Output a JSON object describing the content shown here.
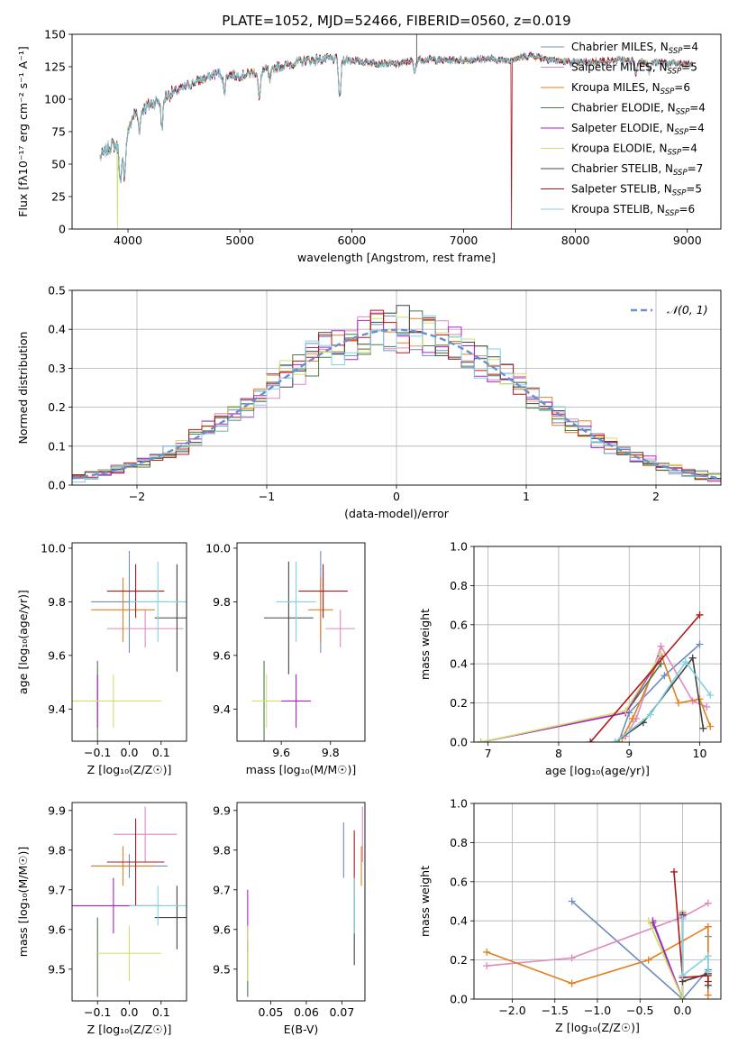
{
  "figure_title": "PLATE=1052, MJD=52466, FIBERID=0560, z=0.019",
  "colors": {
    "Chabrier MILES": "#6c8ebf",
    "Salpeter MILES": "#e08ac0",
    "Kroupa MILES": "#e08020",
    "Chabrier ELODIE": "#4a7a48",
    "Salpeter ELODIE": "#b020c8",
    "Kroupa ELODIE": "#d0e070",
    "Chabrier STELIB": "#444444",
    "Salpeter STELIB": "#b01818",
    "Kroupa STELIB": "#7fd3e0",
    "normal": "#6a8fd0"
  },
  "chart_data": [
    {
      "id": "spectrum",
      "type": "line",
      "title": "PLATE=1052, MJD=52466, FIBERID=0560, z=0.019",
      "xlabel": "wavelength [Angstrom, rest frame]",
      "ylabel": "Flux [fλ10⁻¹⁷ erg cm⁻² s⁻¹ A⁻¹]",
      "xlim": [
        3500,
        9300
      ],
      "ylim": [
        0,
        150
      ],
      "xticks": [
        4000,
        5000,
        6000,
        7000,
        8000,
        9000
      ],
      "yticks": [
        0,
        25,
        50,
        75,
        100,
        125,
        150
      ],
      "legend_position": "right",
      "legend": [
        {
          "name": "Chabrier MILES",
          "n": "4"
        },
        {
          "name": "Salpeter MILES",
          "n": "5"
        },
        {
          "name": "Kroupa MILES",
          "n": "6"
        },
        {
          "name": "Chabrier ELODIE",
          "n": "4"
        },
        {
          "name": "Salpeter ELODIE",
          "n": "4"
        },
        {
          "name": "Kroupa ELODIE",
          "n": "4"
        },
        {
          "name": "Chabrier STELIB",
          "n": "7"
        },
        {
          "name": "Salpeter STELIB",
          "n": "5"
        },
        {
          "name": "Kroupa STELIB",
          "n": "6"
        }
      ],
      "continuum": {
        "x": [
          3750,
          3850,
          3950,
          4050,
          4200,
          4400,
          4600,
          4800,
          5000,
          5200,
          5400,
          5600,
          5800,
          6000,
          6200,
          6400,
          6600,
          6800,
          7000,
          7200,
          7400,
          7600,
          7800,
          8000,
          8200,
          8400,
          8600,
          8800,
          9000,
          9200
        ],
        "y": [
          55,
          65,
          62,
          88,
          96,
          105,
          113,
          120,
          118,
          122,
          126,
          130,
          131,
          130,
          128,
          127,
          131,
          130,
          130,
          131,
          130,
          134,
          130,
          128,
          129,
          130,
          129,
          128,
          127,
          127
        ]
      },
      "features": [
        {
          "x": 3934,
          "depth": 28
        },
        {
          "x": 3969,
          "depth": 25
        },
        {
          "x": 4102,
          "depth": 14
        },
        {
          "x": 4304,
          "depth": 22
        },
        {
          "x": 4861,
          "depth": 14
        },
        {
          "x": 5175,
          "depth": 22
        },
        {
          "x": 5270,
          "depth": 10
        },
        {
          "x": 5893,
          "depth": 30
        },
        {
          "x": 6563,
          "depth": 10
        },
        {
          "x": 8542,
          "depth": 10
        },
        {
          "x": 8662,
          "depth": 8
        }
      ],
      "dropouts": [
        {
          "x": 3905,
          "color": "Kroupa ELODIE"
        },
        {
          "x": 6790,
          "color": "Kroupa ELODIE"
        },
        {
          "x": 7430,
          "color": "Salpeter STELIB"
        }
      ],
      "model_end": 9050,
      "spike": {
        "x": 6580,
        "y": 150
      }
    },
    {
      "id": "residuals",
      "type": "histogram",
      "xlabel": "(data-model)/error",
      "ylabel": "Normed distribution",
      "xlim": [
        -2.5,
        2.5
      ],
      "ylim": [
        0,
        0.5
      ],
      "xticks": [
        -2,
        -1,
        0,
        1,
        2
      ],
      "xtick_labels": [
        "−2",
        "−1",
        "0",
        "1",
        "2"
      ],
      "yticks": [
        0.0,
        0.1,
        0.2,
        0.3,
        0.4,
        0.5
      ],
      "grid": true,
      "bin_width": 0.1,
      "legend": "𝒩(0, 1)",
      "legend_position": "top-right"
    },
    {
      "id": "age-vs-Z",
      "type": "errorbar",
      "xlabel": "Z [log₁₀(Z/Z☉)]",
      "ylabel": "age  [log₁₀(age/yr)]",
      "xlim": [
        -0.18,
        0.18
      ],
      "ylim": [
        9.28,
        10.02
      ],
      "xticks": [
        -0.1,
        0.0,
        0.1
      ],
      "xtick_labels": [
        "−0.1",
        "0.0",
        "0.1"
      ],
      "yticks": [
        9.4,
        9.6,
        9.8,
        10.0
      ],
      "points": [
        {
          "m": "Chabrier MILES",
          "x": 0.0,
          "xerr": 0.12,
          "y": 9.8,
          "yerr": 0.19
        },
        {
          "m": "Salpeter MILES",
          "x": 0.05,
          "xerr": 0.12,
          "y": 9.7,
          "yerr": 0.07
        },
        {
          "m": "Kroupa MILES",
          "x": -0.02,
          "xerr": 0.1,
          "y": 9.77,
          "yerr": 0.12
        },
        {
          "m": "Chabrier ELODIE",
          "x": -0.1,
          "xerr": 0.0,
          "y": 9.43,
          "yerr": 0.15
        },
        {
          "m": "Salpeter ELODIE",
          "x": -0.1,
          "xerr": 0.0,
          "y": 9.43,
          "yerr": 0.1
        },
        {
          "m": "Kroupa ELODIE",
          "x": -0.05,
          "xerr": 0.15,
          "y": 9.43,
          "yerr": 0.1
        },
        {
          "m": "Chabrier STELIB",
          "x": 0.15,
          "xerr": 0.07,
          "y": 9.74,
          "yerr": 0.2
        },
        {
          "m": "Salpeter STELIB",
          "x": 0.02,
          "xerr": 0.09,
          "y": 9.84,
          "yerr": 0.1
        },
        {
          "m": "Kroupa STELIB",
          "x": 0.09,
          "xerr": 0.09,
          "y": 9.8,
          "yerr": 0.15
        }
      ]
    },
    {
      "id": "age-vs-mass",
      "type": "errorbar",
      "xlabel": "mass [log₁₀(M/M☉)]",
      "ylabel": "",
      "xlim": [
        9.42,
        9.94
      ],
      "ylim": [
        9.28,
        10.02
      ],
      "xticks": [
        9.6,
        9.8
      ],
      "yticks": [
        9.4,
        9.6,
        9.8,
        10.0
      ],
      "points": [
        {
          "m": "Chabrier MILES",
          "x": 9.76,
          "xerr": 0.0,
          "y": 9.8,
          "yerr": 0.19
        },
        {
          "m": "Salpeter MILES",
          "x": 9.84,
          "xerr": 0.06,
          "y": 9.7,
          "yerr": 0.07
        },
        {
          "m": "Kroupa MILES",
          "x": 9.76,
          "xerr": 0.05,
          "y": 9.77,
          "yerr": 0.12
        },
        {
          "m": "Chabrier ELODIE",
          "x": 9.53,
          "xerr": 0.0,
          "y": 9.43,
          "yerr": 0.15
        },
        {
          "m": "Salpeter ELODIE",
          "x": 9.66,
          "xerr": 0.06,
          "y": 9.43,
          "yerr": 0.1
        },
        {
          "m": "Kroupa ELODIE",
          "x": 9.54,
          "xerr": 0.06,
          "y": 9.43,
          "yerr": 0.1
        },
        {
          "m": "Chabrier STELIB",
          "x": 9.63,
          "xerr": 0.1,
          "y": 9.74,
          "yerr": 0.21
        },
        {
          "m": "Salpeter STELIB",
          "x": 9.77,
          "xerr": 0.1,
          "y": 9.84,
          "yerr": 0.1
        },
        {
          "m": "Kroupa STELIB",
          "x": 9.66,
          "xerr": 0.08,
          "y": 9.8,
          "yerr": 0.15
        }
      ]
    },
    {
      "id": "weight-vs-age",
      "type": "line",
      "xlabel": "age  [log₁₀(age/yr)]",
      "ylabel": "mass weight",
      "xlim": [
        6.8,
        10.3
      ],
      "ylim": [
        0,
        1
      ],
      "xticks": [
        7,
        8,
        9,
        10
      ],
      "yticks": [
        0.0,
        0.2,
        0.4,
        0.6,
        0.8,
        1.0
      ],
      "grid": true,
      "series": [
        {
          "m": "Chabrier MILES",
          "x": [
            8.85,
            9.0,
            9.5,
            10.0
          ],
          "y": [
            0.0,
            0.15,
            0.34,
            0.5
          ]
        },
        {
          "m": "Salpeter MILES",
          "x": [
            8.95,
            9.1,
            9.45,
            9.9,
            10.1
          ],
          "y": [
            0.03,
            0.12,
            0.49,
            0.21,
            0.18
          ]
        },
        {
          "m": "Kroupa MILES",
          "x": [
            8.9,
            9.05,
            9.45,
            9.7,
            10.0,
            10.15
          ],
          "y": [
            0.02,
            0.12,
            0.45,
            0.2,
            0.22,
            0.08
          ]
        },
        {
          "m": "Chabrier ELODIE",
          "x": [
            6.9,
            8.95,
            9.45
          ],
          "y": [
            0.0,
            0.15,
            0.4
          ]
        },
        {
          "m": "Salpeter ELODIE",
          "x": [
            6.9,
            8.95,
            9.45
          ],
          "y": [
            0.0,
            0.15,
            0.44
          ]
        },
        {
          "m": "Kroupa ELODIE",
          "x": [
            6.9,
            8.95,
            9.45
          ],
          "y": [
            0.0,
            0.16,
            0.45
          ]
        },
        {
          "m": "Chabrier STELIB",
          "x": [
            8.8,
            9.2,
            9.9,
            10.05
          ],
          "y": [
            0.0,
            0.1,
            0.43,
            0.07
          ]
        },
        {
          "m": "Salpeter STELIB",
          "x": [
            8.45,
            10.0
          ],
          "y": [
            0.0,
            0.65
          ]
        },
        {
          "m": "Kroupa STELIB",
          "x": [
            8.8,
            9.3,
            9.8,
            10.15
          ],
          "y": [
            0.0,
            0.14,
            0.41,
            0.24
          ]
        }
      ]
    },
    {
      "id": "mass-vs-Z",
      "type": "errorbar",
      "xlabel": "Z [log₁₀(Z/Z☉)]",
      "ylabel": "mass [log₁₀(M/M☉)]",
      "xlim": [
        -0.18,
        0.18
      ],
      "ylim": [
        9.42,
        9.92
      ],
      "xticks": [
        -0.1,
        0.0,
        0.1
      ],
      "xtick_labels": [
        "−0.1",
        "0.0",
        "0.1"
      ],
      "yticks": [
        9.5,
        9.6,
        9.7,
        9.8,
        9.9
      ],
      "points": [
        {
          "m": "Chabrier MILES",
          "x": 0.0,
          "xerr": 0.12,
          "y": 9.76,
          "yerr": 0.03
        },
        {
          "m": "Salpeter MILES",
          "x": 0.05,
          "xerr": 0.1,
          "y": 9.84,
          "yerr": 0.07
        },
        {
          "m": "Kroupa MILES",
          "x": -0.02,
          "xerr": 0.1,
          "y": 9.76,
          "yerr": 0.05
        },
        {
          "m": "Chabrier ELODIE",
          "x": -0.1,
          "xerr": 0.0,
          "y": 9.53,
          "yerr": 0.1
        },
        {
          "m": "Salpeter ELODIE",
          "x": -0.05,
          "xerr": 0.15,
          "y": 9.66,
          "yerr": 0.07
        },
        {
          "m": "Kroupa ELODIE",
          "x": 0.0,
          "xerr": 0.1,
          "y": 9.54,
          "yerr": 0.07
        },
        {
          "m": "Chabrier STELIB",
          "x": 0.15,
          "xerr": 0.07,
          "y": 9.63,
          "yerr": 0.08
        },
        {
          "m": "Salpeter STELIB",
          "x": 0.02,
          "xerr": 0.09,
          "y": 9.77,
          "yerr": 0.11
        },
        {
          "m": "Kroupa STELIB",
          "x": 0.09,
          "xerr": 0.09,
          "y": 9.66,
          "yerr": 0.05
        }
      ]
    },
    {
      "id": "mass-vs-ebv",
      "type": "errorbar",
      "xlabel": "E(B-V)",
      "ylabel": "",
      "xlim": [
        0.0405,
        0.0765
      ],
      "ylim": [
        9.42,
        9.92
      ],
      "xticks": [
        0.05,
        0.06,
        0.07
      ],
      "yticks": [
        9.5,
        9.6,
        9.7,
        9.8,
        9.9
      ],
      "points": [
        {
          "m": "Chabrier MILES",
          "x": 0.0705,
          "xerr": 0.0,
          "y": 9.8,
          "yerr": 0.07
        },
        {
          "m": "Salpeter MILES",
          "x": 0.0758,
          "xerr": 0.0,
          "y": 9.84,
          "yerr": 0.07
        },
        {
          "m": "Kroupa MILES",
          "x": 0.0755,
          "xerr": 0.0,
          "y": 9.76,
          "yerr": 0.05
        },
        {
          "m": "Chabrier ELODIE",
          "x": 0.0435,
          "xerr": 0.0,
          "y": 9.5,
          "yerr": 0.07
        },
        {
          "m": "Salpeter ELODIE",
          "x": 0.0435,
          "xerr": 0.0,
          "y": 9.62,
          "yerr": 0.08
        },
        {
          "m": "Kroupa ELODIE",
          "x": 0.0435,
          "xerr": 0.0,
          "y": 9.54,
          "yerr": 0.07
        },
        {
          "m": "Chabrier STELIB",
          "x": 0.0735,
          "xerr": 0.0,
          "y": 9.6,
          "yerr": 0.09
        },
        {
          "m": "Salpeter STELIB",
          "x": 0.0735,
          "xerr": 0.0,
          "y": 9.77,
          "yerr": 0.08
        },
        {
          "m": "Kroupa STELIB",
          "x": 0.0735,
          "xerr": 0.0,
          "y": 9.66,
          "yerr": 0.07
        }
      ]
    },
    {
      "id": "weight-vs-Z",
      "type": "line",
      "xlabel": "Z [log₁₀(Z/Z☉)]",
      "ylabel": "mass weight",
      "xlim": [
        -2.45,
        0.45
      ],
      "ylim": [
        0,
        1
      ],
      "xticks": [
        -2.0,
        -1.5,
        -1.0,
        -0.5,
        0.0
      ],
      "xtick_labels": [
        "−2.0",
        "−1.5",
        "−1.0",
        "−0.5",
        "0.0"
      ],
      "yticks": [
        0.0,
        0.2,
        0.4,
        0.6,
        0.8,
        1.0
      ],
      "grid": true,
      "series": [
        {
          "m": "Chabrier MILES",
          "x": [
            -1.3,
            0.0,
            0.3,
            0.3
          ],
          "y": [
            0.5,
            0.0,
            0.15,
            0.32
          ]
        },
        {
          "m": "Salpeter MILES",
          "x": [
            -2.3,
            -1.3,
            0.0,
            0.3
          ],
          "y": [
            0.17,
            0.21,
            0.42,
            0.49
          ]
        },
        {
          "m": "Kroupa MILES",
          "x": [
            -2.3,
            -1.3,
            -0.4,
            0.3,
            0.3
          ],
          "y": [
            0.24,
            0.08,
            0.2,
            0.37,
            0.02
          ]
        },
        {
          "m": "Chabrier ELODIE",
          "x": [
            -0.35,
            0.0,
            0.0
          ],
          "y": [
            0.39,
            0.0,
            0.43
          ]
        },
        {
          "m": "Salpeter ELODIE",
          "x": [
            -0.35,
            0.0,
            0.0
          ],
          "y": [
            0.4,
            0.0,
            0.44
          ]
        },
        {
          "m": "Kroupa ELODIE",
          "x": [
            -0.4,
            0.0,
            0.0
          ],
          "y": [
            0.4,
            0.0,
            0.45
          ]
        },
        {
          "m": "Chabrier STELIB",
          "x": [
            0.0,
            0.0,
            0.3,
            0.3
          ],
          "y": [
            0.43,
            0.09,
            0.13,
            0.07
          ]
        },
        {
          "m": "Salpeter STELIB",
          "x": [
            -0.1,
            0.0,
            0.3,
            0.3
          ],
          "y": [
            0.65,
            0.11,
            0.12,
            0.09
          ]
        },
        {
          "m": "Kroupa STELIB",
          "x": [
            0.0,
            0.0,
            0.3,
            0.3
          ],
          "y": [
            0.41,
            0.12,
            0.22,
            0.14
          ]
        }
      ]
    }
  ]
}
